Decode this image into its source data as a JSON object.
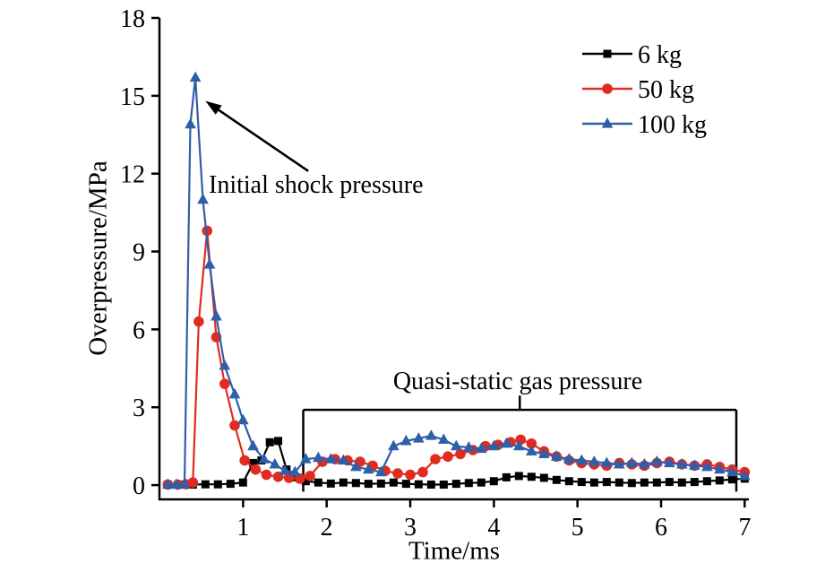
{
  "chart_data": {
    "type": "line",
    "title": "",
    "xlabel": "Time/ms",
    "ylabel": "Overpressure/MPa",
    "xlim": [
      0,
      7.05
    ],
    "ylim": [
      0,
      18
    ],
    "xticks": [
      1,
      2,
      3,
      4,
      5,
      6,
      7
    ],
    "yticks": [
      0,
      3,
      6,
      9,
      12,
      15,
      18
    ],
    "grid": false,
    "legend_position": "upper right",
    "series": [
      {
        "name": "6 kg",
        "color": "#000000",
        "marker": "square",
        "points": [
          [
            0.1,
            0.02
          ],
          [
            0.25,
            0.02
          ],
          [
            0.4,
            0.02
          ],
          [
            0.55,
            0.03
          ],
          [
            0.7,
            0.03
          ],
          [
            0.85,
            0.05
          ],
          [
            1.0,
            0.1
          ],
          [
            1.12,
            0.85
          ],
          [
            1.22,
            0.95
          ],
          [
            1.32,
            1.65
          ],
          [
            1.42,
            1.7
          ],
          [
            1.52,
            0.6
          ],
          [
            1.62,
            0.3
          ],
          [
            1.75,
            0.15
          ],
          [
            1.9,
            0.1
          ],
          [
            2.05,
            0.06
          ],
          [
            2.2,
            0.1
          ],
          [
            2.35,
            0.08
          ],
          [
            2.5,
            0.05
          ],
          [
            2.65,
            0.06
          ],
          [
            2.8,
            0.1
          ],
          [
            2.95,
            0.05
          ],
          [
            3.1,
            0.03
          ],
          [
            3.25,
            0.02
          ],
          [
            3.4,
            0.02
          ],
          [
            3.55,
            0.05
          ],
          [
            3.7,
            0.08
          ],
          [
            3.85,
            0.1
          ],
          [
            4.0,
            0.15
          ],
          [
            4.15,
            0.3
          ],
          [
            4.3,
            0.35
          ],
          [
            4.45,
            0.32
          ],
          [
            4.6,
            0.28
          ],
          [
            4.75,
            0.2
          ],
          [
            4.9,
            0.15
          ],
          [
            5.05,
            0.12
          ],
          [
            5.2,
            0.1
          ],
          [
            5.35,
            0.12
          ],
          [
            5.5,
            0.1
          ],
          [
            5.65,
            0.08
          ],
          [
            5.8,
            0.1
          ],
          [
            5.95,
            0.1
          ],
          [
            6.1,
            0.12
          ],
          [
            6.25,
            0.1
          ],
          [
            6.4,
            0.12
          ],
          [
            6.55,
            0.15
          ],
          [
            6.7,
            0.18
          ],
          [
            6.85,
            0.22
          ],
          [
            7.0,
            0.25
          ]
        ]
      },
      {
        "name": "50 kg",
        "color": "#e02b20",
        "marker": "circle",
        "points": [
          [
            0.1,
            0.02
          ],
          [
            0.22,
            0.02
          ],
          [
            0.32,
            0.03
          ],
          [
            0.4,
            0.1
          ],
          [
            0.47,
            6.3
          ],
          [
            0.57,
            9.8
          ],
          [
            0.68,
            5.7
          ],
          [
            0.78,
            3.9
          ],
          [
            0.9,
            2.3
          ],
          [
            1.02,
            0.95
          ],
          [
            1.15,
            0.6
          ],
          [
            1.28,
            0.4
          ],
          [
            1.42,
            0.32
          ],
          [
            1.55,
            0.28
          ],
          [
            1.68,
            0.25
          ],
          [
            1.8,
            0.35
          ],
          [
            1.95,
            0.9
          ],
          [
            2.1,
            1.0
          ],
          [
            2.25,
            0.95
          ],
          [
            2.4,
            0.9
          ],
          [
            2.55,
            0.75
          ],
          [
            2.7,
            0.55
          ],
          [
            2.85,
            0.45
          ],
          [
            3.0,
            0.4
          ],
          [
            3.15,
            0.5
          ],
          [
            3.3,
            1.0
          ],
          [
            3.45,
            1.1
          ],
          [
            3.6,
            1.2
          ],
          [
            3.75,
            1.35
          ],
          [
            3.9,
            1.5
          ],
          [
            4.05,
            1.55
          ],
          [
            4.2,
            1.65
          ],
          [
            4.32,
            1.75
          ],
          [
            4.45,
            1.6
          ],
          [
            4.6,
            1.3
          ],
          [
            4.75,
            1.1
          ],
          [
            4.9,
            0.95
          ],
          [
            5.05,
            0.85
          ],
          [
            5.2,
            0.8
          ],
          [
            5.35,
            0.75
          ],
          [
            5.5,
            0.85
          ],
          [
            5.65,
            0.8
          ],
          [
            5.8,
            0.75
          ],
          [
            5.95,
            0.85
          ],
          [
            6.1,
            0.9
          ],
          [
            6.25,
            0.8
          ],
          [
            6.4,
            0.75
          ],
          [
            6.55,
            0.8
          ],
          [
            6.7,
            0.7
          ],
          [
            6.85,
            0.6
          ],
          [
            7.0,
            0.5
          ]
        ]
      },
      {
        "name": "100 kg",
        "color": "#2f5fa8",
        "marker": "triangle",
        "points": [
          [
            0.1,
            0.02
          ],
          [
            0.2,
            0.02
          ],
          [
            0.3,
            0.05
          ],
          [
            0.37,
            13.9
          ],
          [
            0.43,
            15.7
          ],
          [
            0.52,
            11.0
          ],
          [
            0.6,
            8.5
          ],
          [
            0.68,
            6.5
          ],
          [
            0.78,
            4.6
          ],
          [
            0.9,
            3.5
          ],
          [
            1.0,
            2.5
          ],
          [
            1.12,
            1.5
          ],
          [
            1.25,
            1.0
          ],
          [
            1.38,
            0.8
          ],
          [
            1.5,
            0.55
          ],
          [
            1.62,
            0.5
          ],
          [
            1.75,
            1.0
          ],
          [
            1.9,
            1.05
          ],
          [
            2.05,
            1.0
          ],
          [
            2.2,
            0.95
          ],
          [
            2.35,
            0.7
          ],
          [
            2.5,
            0.6
          ],
          [
            2.65,
            0.5
          ],
          [
            2.8,
            1.5
          ],
          [
            2.95,
            1.7
          ],
          [
            3.1,
            1.8
          ],
          [
            3.25,
            1.9
          ],
          [
            3.4,
            1.75
          ],
          [
            3.55,
            1.5
          ],
          [
            3.7,
            1.45
          ],
          [
            3.85,
            1.4
          ],
          [
            4.0,
            1.5
          ],
          [
            4.15,
            1.6
          ],
          [
            4.3,
            1.5
          ],
          [
            4.45,
            1.3
          ],
          [
            4.6,
            1.2
          ],
          [
            4.75,
            1.1
          ],
          [
            4.9,
            1.0
          ],
          [
            5.05,
            0.95
          ],
          [
            5.2,
            0.9
          ],
          [
            5.35,
            0.85
          ],
          [
            5.5,
            0.8
          ],
          [
            5.65,
            0.85
          ],
          [
            5.8,
            0.8
          ],
          [
            5.95,
            0.9
          ],
          [
            6.1,
            0.85
          ],
          [
            6.25,
            0.8
          ],
          [
            6.4,
            0.75
          ],
          [
            6.55,
            0.7
          ],
          [
            6.7,
            0.6
          ],
          [
            6.85,
            0.5
          ],
          [
            7.0,
            0.35
          ]
        ]
      }
    ],
    "annotations": [
      {
        "type": "arrow",
        "text": "Initial shock pressure",
        "arrow_from": [
          1.78,
          12.1
        ],
        "arrow_to": [
          0.55,
          14.8
        ]
      },
      {
        "type": "bracket",
        "text": "Quasi-static gas pressure",
        "x_start": 1.72,
        "x_end": 6.9,
        "bracket_y": 2.9,
        "drop_to": -0.25,
        "center_tick_top": 3.45
      }
    ]
  }
}
